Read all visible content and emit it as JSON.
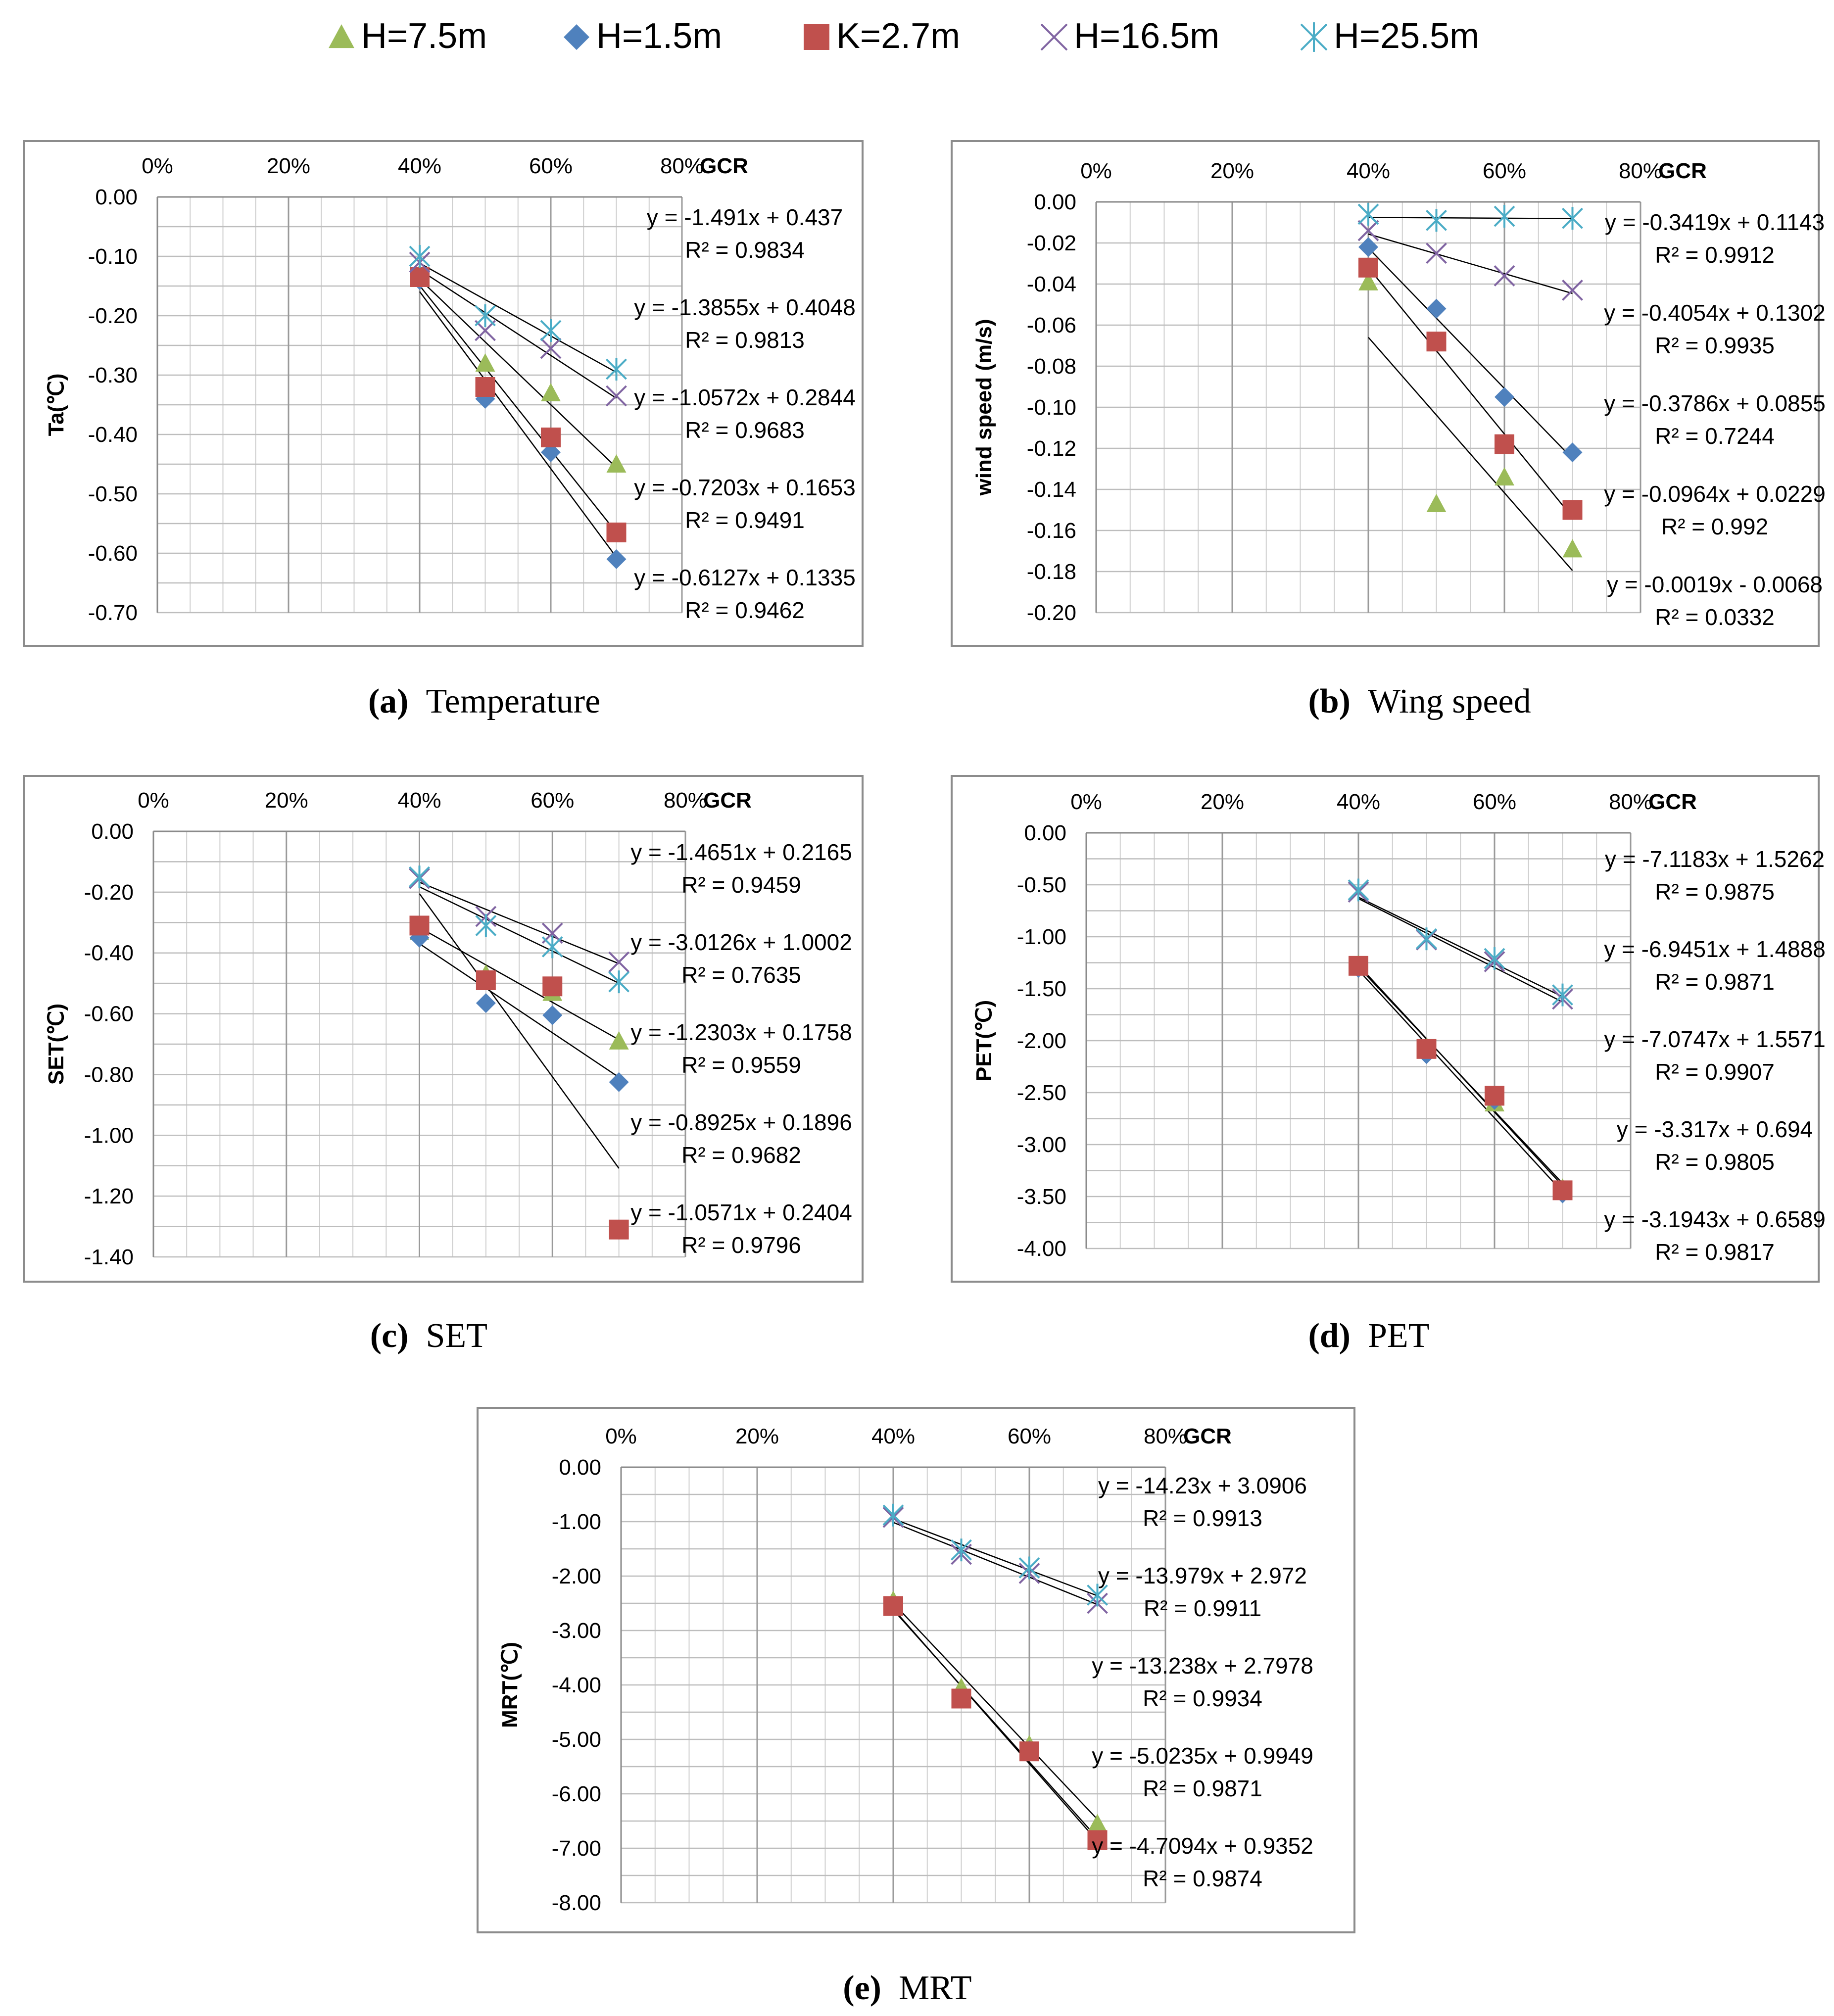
{
  "legend": [
    {
      "label": "H=7.5m",
      "marker": "triangle-icon",
      "color": "#9bbb59"
    },
    {
      "label": "H=1.5m",
      "marker": "diamond-icon",
      "color": "#4f81bd"
    },
    {
      "label": "K=2.7m",
      "marker": "square-icon",
      "color": "#c0504d"
    },
    {
      "label": "H=16.5m",
      "marker": "x-icon",
      "color": "#8064a2"
    },
    {
      "label": "H=25.5m",
      "marker": "asterisk-icon",
      "color": "#4bacc6"
    }
  ],
  "chart_data": [
    {
      "type": "scatter",
      "panel": "a",
      "caption_letter": "(a)",
      "caption_text": "Temperature",
      "ylabel": "Ta(℃)",
      "xlabel": "GCR",
      "x_tick_labels": [
        "0%",
        "20%",
        "40%",
        "60%",
        "80%"
      ],
      "xlim": [
        0,
        0.8
      ],
      "ylim": [
        -0.7,
        0
      ],
      "y_tick_labels": [
        "0.00",
        "-0.10",
        "-0.20",
        "-0.30",
        "-0.40",
        "-0.50",
        "-0.60",
        "-0.70"
      ],
      "y_ticks": [
        0,
        -0.1,
        -0.2,
        -0.3,
        -0.4,
        -0.5,
        -0.6,
        -0.7
      ],
      "y_minor_step": 0.05,
      "series": [
        {
          "name": "H=7.5m",
          "x": [
            0.4,
            0.5,
            0.6,
            0.7
          ],
          "y": [
            -0.13,
            -0.28,
            -0.33,
            -0.45
          ]
        },
        {
          "name": "H=1.5m",
          "x": [
            0.4,
            0.5,
            0.6,
            0.7
          ],
          "y": [
            -0.14,
            -0.34,
            -0.43,
            -0.61
          ]
        },
        {
          "name": "K=2.7m",
          "x": [
            0.4,
            0.5,
            0.6,
            0.7
          ],
          "y": [
            -0.135,
            -0.32,
            -0.405,
            -0.565
          ]
        },
        {
          "name": "H=16.5m",
          "x": [
            0.4,
            0.5,
            0.6,
            0.7
          ],
          "y": [
            -0.11,
            -0.225,
            -0.255,
            -0.335
          ]
        },
        {
          "name": "H=25.5m",
          "x": [
            0.4,
            0.5,
            0.6,
            0.7
          ],
          "y": [
            -0.1,
            -0.2,
            -0.225,
            -0.29
          ]
        }
      ],
      "trendlines": [
        {
          "slope": -1.491,
          "intercept": 0.437,
          "x_range": [
            0.4,
            0.7
          ]
        },
        {
          "slope": -1.3855,
          "intercept": 0.4048,
          "x_range": [
            0.4,
            0.7
          ]
        },
        {
          "slope": -1.0572,
          "intercept": 0.2844,
          "x_range": [
            0.4,
            0.7
          ]
        },
        {
          "slope": -0.7203,
          "intercept": 0.1653,
          "x_range": [
            0.4,
            0.7
          ]
        },
        {
          "slope": -0.6127,
          "intercept": 0.1335,
          "x_range": [
            0.4,
            0.7
          ]
        }
      ],
      "equations": [
        {
          "eq": "y = -1.491x + 0.437",
          "r2": "R² = 0.9834"
        },
        {
          "eq": "y = -1.3855x + 0.4048",
          "r2": "R² = 0.9813"
        },
        {
          "eq": "y = -1.0572x + 0.2844",
          "r2": "R² = 0.9683"
        },
        {
          "eq": "y = -0.7203x + 0.1653",
          "r2": "R² = 0.9491"
        },
        {
          "eq": "y = -0.6127x + 0.1335",
          "r2": "R² = 0.9462"
        }
      ]
    },
    {
      "type": "scatter",
      "panel": "b",
      "caption_letter": "(b)",
      "caption_text": "Wing speed",
      "ylabel": "wind speed (m/s)",
      "xlabel": "GCR",
      "x_tick_labels": [
        "0%",
        "20%",
        "40%",
        "60%",
        "80%"
      ],
      "xlim": [
        0,
        0.8
      ],
      "ylim": [
        -0.2,
        0
      ],
      "y_tick_labels": [
        "0.00",
        "-0.02",
        "-0.04",
        "-0.06",
        "-0.08",
        "-0.10",
        "-0.12",
        "-0.14",
        "-0.16",
        "-0.18",
        "-0.20"
      ],
      "y_ticks": [
        0,
        -0.02,
        -0.04,
        -0.06,
        -0.08,
        -0.1,
        -0.12,
        -0.14,
        -0.16,
        -0.18,
        -0.2
      ],
      "y_minor_step": 0.02,
      "series": [
        {
          "name": "H=7.5m",
          "x": [
            0.4,
            0.5,
            0.6,
            0.7
          ],
          "y": [
            -0.039,
            -0.147,
            -0.134,
            -0.169
          ]
        },
        {
          "name": "H=1.5m",
          "x": [
            0.4,
            0.5,
            0.6,
            0.7
          ],
          "y": [
            -0.022,
            -0.052,
            -0.095,
            -0.122
          ]
        },
        {
          "name": "K=2.7m",
          "x": [
            0.4,
            0.5,
            0.6,
            0.7
          ],
          "y": [
            -0.032,
            -0.068,
            -0.118,
            -0.15
          ]
        },
        {
          "name": "H=16.5m",
          "x": [
            0.4,
            0.5,
            0.6,
            0.7
          ],
          "y": [
            -0.014,
            -0.025,
            -0.036,
            -0.043
          ]
        },
        {
          "name": "H=25.5m",
          "x": [
            0.4,
            0.5,
            0.6,
            0.7
          ],
          "y": [
            -0.006,
            -0.009,
            -0.007,
            -0.008
          ]
        }
      ],
      "trendlines": [
        {
          "slope": -0.3786,
          "intercept": 0.0855,
          "x_range": [
            0.4,
            0.7
          ]
        },
        {
          "slope": -0.4054,
          "intercept": 0.1302,
          "x_range": [
            0.4,
            0.7
          ]
        },
        {
          "slope": -0.3419,
          "intercept": 0.1143,
          "x_range": [
            0.4,
            0.7
          ]
        },
        {
          "slope": -0.0964,
          "intercept": 0.0229,
          "x_range": [
            0.4,
            0.7
          ]
        },
        {
          "slope": -0.0019,
          "intercept": -0.0068,
          "x_range": [
            0.4,
            0.7
          ]
        }
      ],
      "equations": [
        {
          "eq": "y = -0.3419x + 0.1143",
          "r2": "R² = 0.9912"
        },
        {
          "eq": "y = -0.4054x + 0.1302",
          "r2": "R² = 0.9935"
        },
        {
          "eq": "y = -0.3786x + 0.0855",
          "r2": "R² = 0.7244"
        },
        {
          "eq": "y = -0.0964x + 0.0229",
          "r2": "R² = 0.992"
        },
        {
          "eq": "y = -0.0019x - 0.0068",
          "r2": "R² = 0.0332"
        }
      ]
    },
    {
      "type": "scatter",
      "panel": "c",
      "caption_letter": "(c)",
      "caption_text": "SET",
      "ylabel": "SET(℃)",
      "xlabel": "GCR",
      "x_tick_labels": [
        "0%",
        "20%",
        "40%",
        "60%",
        "80%"
      ],
      "xlim": [
        0,
        0.8
      ],
      "ylim": [
        -1.4,
        0
      ],
      "y_tick_labels": [
        "0.00",
        "-0.20",
        "-0.40",
        "-0.60",
        "-0.80",
        "-1.00",
        "-1.20",
        "-1.40"
      ],
      "y_ticks": [
        0,
        -0.2,
        -0.4,
        -0.6,
        -0.8,
        -1.0,
        -1.2,
        -1.4
      ],
      "y_minor_step": 0.1,
      "series": [
        {
          "name": "H=7.5m",
          "x": [
            0.4,
            0.5,
            0.6,
            0.7
          ],
          "y": [
            -0.33,
            -0.47,
            -0.53,
            -0.69
          ]
        },
        {
          "name": "H=1.5m",
          "x": [
            0.4,
            0.5,
            0.6,
            0.7
          ],
          "y": [
            -0.35,
            -0.565,
            -0.605,
            -0.825
          ]
        },
        {
          "name": "K=2.7m",
          "x": [
            0.4,
            0.5,
            0.6,
            0.7
          ],
          "y": [
            -0.31,
            -0.49,
            -0.51,
            -1.31
          ]
        },
        {
          "name": "H=16.5m",
          "x": [
            0.4,
            0.5,
            0.6,
            0.7
          ],
          "y": [
            -0.155,
            -0.28,
            -0.335,
            -0.43
          ]
        },
        {
          "name": "H=25.5m",
          "x": [
            0.4,
            0.5,
            0.6,
            0.7
          ],
          "y": [
            -0.15,
            -0.31,
            -0.38,
            -0.495
          ]
        }
      ],
      "trendlines": [
        {
          "slope": -3.0126,
          "intercept": 1.0002,
          "x_range": [
            0.4,
            0.7
          ]
        },
        {
          "slope": -1.4651,
          "intercept": 0.2165,
          "x_range": [
            0.4,
            0.7
          ]
        },
        {
          "slope": -1.2303,
          "intercept": 0.1758,
          "x_range": [
            0.4,
            0.7
          ]
        },
        {
          "slope": -0.8925,
          "intercept": 0.1896,
          "x_range": [
            0.4,
            0.7
          ]
        },
        {
          "slope": -1.0571,
          "intercept": 0.2404,
          "x_range": [
            0.4,
            0.7
          ]
        }
      ],
      "equations": [
        {
          "eq": "y = -1.4651x + 0.2165",
          "r2": "R² = 0.9459"
        },
        {
          "eq": "y = -3.0126x + 1.0002",
          "r2": "R² = 0.7635"
        },
        {
          "eq": "y = -1.2303x + 0.1758",
          "r2": "R² = 0.9559"
        },
        {
          "eq": "y = -0.8925x + 0.1896",
          "r2": "R² = 0.9682"
        },
        {
          "eq": "y = -1.0571x + 0.2404",
          "r2": "R² = 0.9796"
        }
      ]
    },
    {
      "type": "scatter",
      "panel": "d",
      "caption_letter": "(d)",
      "caption_text": "PET",
      "ylabel": "PET(℃)",
      "xlabel": "GCR",
      "x_tick_labels": [
        "0%",
        "20%",
        "40%",
        "60%",
        "80%"
      ],
      "xlim": [
        0,
        0.8
      ],
      "ylim": [
        -4,
        0
      ],
      "y_tick_labels": [
        "0.00",
        "-0.50",
        "-1.00",
        "-1.50",
        "-2.00",
        "-2.50",
        "-3.00",
        "-3.50",
        "-4.00"
      ],
      "y_ticks": [
        0,
        -0.5,
        -1.0,
        -1.5,
        -2.0,
        -2.5,
        -3.0,
        -3.5,
        -4.0
      ],
      "y_minor_step": 0.25,
      "series": [
        {
          "name": "H=7.5m",
          "x": [
            0.4,
            0.5,
            0.6,
            0.7
          ],
          "y": [
            -1.27,
            -2.07,
            -2.6,
            -3.42
          ]
        },
        {
          "name": "H=1.5m",
          "x": [
            0.4,
            0.5,
            0.6,
            0.7
          ],
          "y": [
            -1.3,
            -2.13,
            -2.57,
            -3.47
          ]
        },
        {
          "name": "K=2.7m",
          "x": [
            0.4,
            0.5,
            0.6,
            0.7
          ],
          "y": [
            -1.28,
            -2.08,
            -2.53,
            -3.44
          ]
        },
        {
          "name": "H=16.5m",
          "x": [
            0.4,
            0.5,
            0.6,
            0.7
          ],
          "y": [
            -0.57,
            -1.03,
            -1.24,
            -1.6
          ]
        },
        {
          "name": "H=25.5m",
          "x": [
            0.4,
            0.5,
            0.6,
            0.7
          ],
          "y": [
            -0.55,
            -1.02,
            -1.21,
            -1.56
          ]
        }
      ],
      "trendlines": [
        {
          "slope": -7.1183,
          "intercept": 1.5262,
          "x_range": [
            0.4,
            0.7
          ]
        },
        {
          "slope": -6.9451,
          "intercept": 1.4888,
          "x_range": [
            0.4,
            0.7
          ]
        },
        {
          "slope": -7.0747,
          "intercept": 1.5571,
          "x_range": [
            0.4,
            0.7
          ]
        },
        {
          "slope": -3.317,
          "intercept": 0.694,
          "x_range": [
            0.4,
            0.7
          ]
        },
        {
          "slope": -3.1943,
          "intercept": 0.6589,
          "x_range": [
            0.4,
            0.7
          ]
        }
      ],
      "equations": [
        {
          "eq": "y = -7.1183x + 1.5262",
          "r2": "R² = 0.9875"
        },
        {
          "eq": "y = -6.9451x + 1.4888",
          "r2": "R² = 0.9871"
        },
        {
          "eq": "y = -7.0747x + 1.5571",
          "r2": "R² = 0.9907"
        },
        {
          "eq": "y = -3.317x + 0.694",
          "r2": "R² = 0.9805"
        },
        {
          "eq": "y = -3.1943x + 0.6589",
          "r2": "R² = 0.9817"
        }
      ]
    },
    {
      "type": "scatter",
      "panel": "e",
      "caption_letter": "(e)",
      "caption_text": "MRT",
      "ylabel": "MRT(℃)",
      "xlabel": "GCR",
      "x_tick_labels": [
        "0%",
        "20%",
        "40%",
        "60%",
        "80%"
      ],
      "xlim": [
        0,
        0.8
      ],
      "ylim": [
        -8,
        0
      ],
      "y_tick_labels": [
        "0.00",
        "-1.00",
        "-2.00",
        "-3.00",
        "-4.00",
        "-5.00",
        "-6.00",
        "-7.00",
        "-8.00"
      ],
      "y_ticks": [
        0,
        -1,
        -2,
        -3,
        -4,
        -5,
        -6,
        -7,
        -8
      ],
      "y_minor_step": 0.5,
      "series": [
        {
          "name": "H=7.5m",
          "x": [
            0.4,
            0.5,
            0.6,
            0.7
          ],
          "y": [
            -2.45,
            -4.05,
            -5.1,
            -6.55
          ]
        },
        {
          "name": "H=1.5m",
          "x": [
            0.4,
            0.5,
            0.6,
            0.7
          ],
          "y": [
            -2.55,
            -4.25,
            -5.2,
            -6.85
          ]
        },
        {
          "name": "K=2.7m",
          "x": [
            0.4,
            0.5,
            0.6,
            0.7
          ],
          "y": [
            -2.55,
            -4.25,
            -5.22,
            -6.85
          ]
        },
        {
          "name": "H=16.5m",
          "x": [
            0.4,
            0.5,
            0.6,
            0.7
          ],
          "y": [
            -0.92,
            -1.6,
            -1.95,
            -2.5
          ]
        },
        {
          "name": "H=25.5m",
          "x": [
            0.4,
            0.5,
            0.6,
            0.7
          ],
          "y": [
            -0.88,
            -1.52,
            -1.85,
            -2.35
          ]
        }
      ],
      "trendlines": [
        {
          "slope": -14.23,
          "intercept": 3.0906,
          "x_range": [
            0.4,
            0.7
          ]
        },
        {
          "slope": -13.979,
          "intercept": 2.972,
          "x_range": [
            0.4,
            0.7
          ]
        },
        {
          "slope": -13.238,
          "intercept": 2.7978,
          "x_range": [
            0.4,
            0.7
          ]
        },
        {
          "slope": -5.0235,
          "intercept": 0.9949,
          "x_range": [
            0.4,
            0.7
          ]
        },
        {
          "slope": -4.7094,
          "intercept": 0.9352,
          "x_range": [
            0.4,
            0.7
          ]
        }
      ],
      "equations": [
        {
          "eq": "y = -14.23x + 3.0906",
          "r2": "R² = 0.9913"
        },
        {
          "eq": "y = -13.979x + 2.972",
          "r2": "R² = 0.9911"
        },
        {
          "eq": "y = -13.238x + 2.7978",
          "r2": "R² = 0.9934"
        },
        {
          "eq": "y = -5.0235x + 0.9949",
          "r2": "R² = 0.9871"
        },
        {
          "eq": "y = -4.7094x + 0.9352",
          "r2": "R² = 0.9874"
        }
      ]
    }
  ]
}
